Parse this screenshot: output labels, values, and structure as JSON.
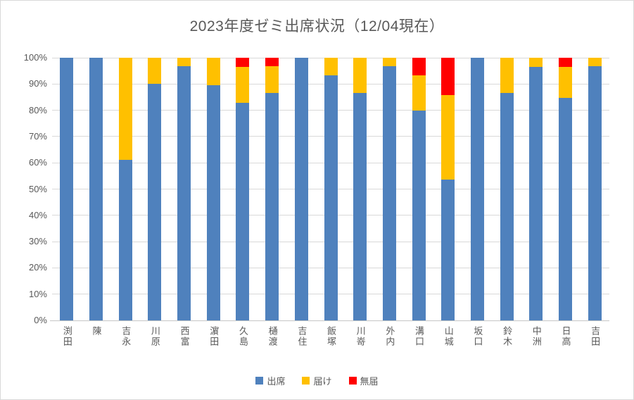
{
  "title": "2023年度ゼミ出席状況（12/04現在）",
  "colors": {
    "attend": "#4F81BD",
    "notice": "#FFC000",
    "unexcused": "#FF0000",
    "grid": "#D9D9D9",
    "axis_text": "#595959",
    "frame_border": "#D9D9D9"
  },
  "chart_data": {
    "type": "bar",
    "variant": "stacked-100-percent-column",
    "title": "2023年度ゼミ出席状況（12/04現在）",
    "xlabel": "",
    "ylabel": "",
    "ylim": [
      0,
      100
    ],
    "grid": true,
    "legend_position": "bottom",
    "y_ticks": [
      "100%",
      "90%",
      "80%",
      "70%",
      "60%",
      "50%",
      "40%",
      "30%",
      "20%",
      "10%",
      "0%"
    ],
    "y_tick_values": [
      100,
      90,
      80,
      70,
      60,
      50,
      40,
      30,
      20,
      10,
      0
    ],
    "categories": [
      "渕田",
      "陳",
      "吉永",
      "川原",
      "西富",
      "濵田",
      "久島",
      "樋渡",
      "吉住",
      "飯塚",
      "川嵜",
      "外内",
      "溝口",
      "山城",
      "坂口",
      "鈴木",
      "中洲",
      "日高",
      "吉田"
    ],
    "series": [
      {
        "name": "出席",
        "color": "#4F81BD",
        "values": [
          100,
          100,
          61,
          90,
          96.7,
          89.5,
          82.8,
          86.7,
          100,
          93.3,
          86.7,
          96.7,
          80,
          53.5,
          100,
          86.7,
          96.6,
          84.8,
          96.7
        ]
      },
      {
        "name": "届け",
        "color": "#FFC000",
        "values": [
          0,
          0,
          39,
          10,
          3.3,
          10.5,
          13.8,
          10,
          0,
          6.7,
          13.3,
          3.3,
          13.3,
          32.2,
          0,
          13.3,
          3.4,
          11.7,
          3.3
        ]
      },
      {
        "name": "無届",
        "color": "#FF0000",
        "values": [
          0,
          0,
          0,
          0,
          0,
          0,
          3.4,
          3.3,
          0,
          0,
          0,
          0,
          6.7,
          14.3,
          0,
          0,
          0,
          3.5,
          0
        ]
      }
    ]
  }
}
